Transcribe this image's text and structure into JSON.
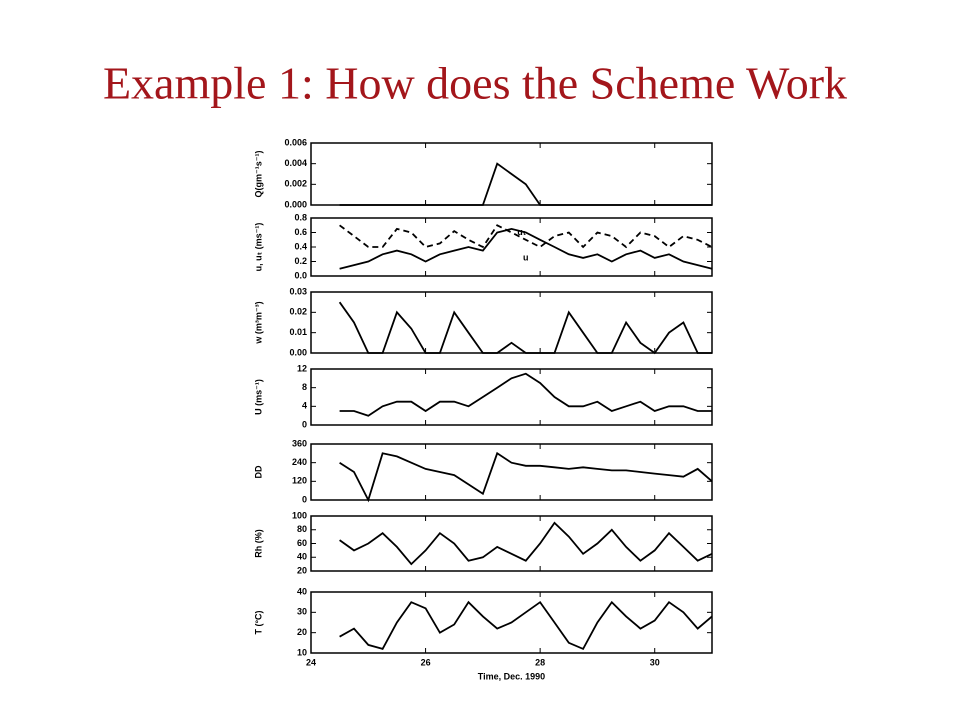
{
  "title": "Example 1: How does the Scheme Work",
  "chart_data": [
    {
      "type": "line",
      "ylabel": "Q(gm⁻¹s⁻¹)",
      "xlim": [
        24,
        31
      ],
      "ylim": [
        0,
        0.006
      ],
      "yticks": [
        {
          "value": 0,
          "label": "0.000"
        },
        {
          "value": 0.002,
          "label": "0.002"
        },
        {
          "value": 0.004,
          "label": "0.004"
        },
        {
          "value": 0.006,
          "label": "0.006"
        }
      ],
      "x": [
        24.5,
        24.75,
        25,
        25.25,
        25.5,
        25.75,
        26,
        26.25,
        26.5,
        26.75,
        27,
        27.25,
        27.5,
        27.75,
        28,
        28.25,
        28.5,
        28.75,
        29,
        29.25,
        29.5,
        29.75,
        30,
        30.25,
        30.5,
        30.75,
        31
      ],
      "values": [
        0,
        0,
        0,
        0,
        0,
        0,
        0,
        0,
        0,
        0,
        0,
        0.004,
        0.003,
        0.002,
        0,
        0,
        0,
        0,
        0,
        0,
        0,
        0,
        0,
        0,
        0,
        0,
        0
      ],
      "color": "#000000"
    },
    {
      "type": "line",
      "ylabel": "u, uₜ (ms⁻¹)",
      "xlim": [
        24,
        31
      ],
      "ylim": [
        0,
        0.8
      ],
      "yticks": [
        {
          "value": 0,
          "label": "0.0"
        },
        0.2,
        0.4,
        0.6,
        0.8
      ],
      "x": [
        24.5,
        24.75,
        25,
        25.25,
        25.5,
        25.75,
        26,
        26.25,
        26.5,
        26.75,
        27,
        27.25,
        27.5,
        27.75,
        28,
        28.25,
        28.5,
        28.75,
        29,
        29.25,
        29.5,
        29.75,
        30,
        30.25,
        30.5,
        30.75,
        31
      ],
      "series": [
        {
          "name": "uₜ",
          "color": "#000000",
          "dashed": true,
          "values": [
            0.7,
            0.55,
            0.4,
            0.4,
            0.65,
            0.6,
            0.4,
            0.45,
            0.62,
            0.5,
            0.4,
            0.7,
            0.6,
            0.5,
            0.4,
            0.55,
            0.6,
            0.4,
            0.6,
            0.55,
            0.4,
            0.6,
            0.55,
            0.4,
            0.55,
            0.5,
            0.4
          ]
        },
        {
          "name": "u",
          "color": "#000000",
          "dashed": false,
          "values": [
            0.1,
            0.15,
            0.2,
            0.3,
            0.35,
            0.3,
            0.2,
            0.3,
            0.35,
            0.4,
            0.35,
            0.6,
            0.65,
            0.6,
            0.5,
            0.4,
            0.3,
            0.25,
            0.3,
            0.2,
            0.3,
            0.35,
            0.25,
            0.3,
            0.2,
            0.15,
            0.1
          ]
        }
      ]
    },
    {
      "type": "line",
      "ylabel": "w (m³m⁻³)",
      "xlim": [
        24,
        31
      ],
      "ylim": [
        0,
        0.03
      ],
      "yticks": [
        {
          "value": 0,
          "label": "0.00"
        },
        0.01,
        0.02,
        0.03
      ],
      "x": [
        24.5,
        24.75,
        25,
        25.25,
        25.5,
        25.75,
        26,
        26.25,
        26.5,
        26.75,
        27,
        27.25,
        27.5,
        27.75,
        28,
        28.25,
        28.5,
        28.75,
        29,
        29.25,
        29.5,
        29.75,
        30,
        30.25,
        30.5,
        30.75,
        31
      ],
      "values": [
        0.025,
        0.015,
        0,
        0,
        0.02,
        0.012,
        0,
        0,
        0.02,
        0.01,
        0,
        0,
        0.005,
        0,
        0,
        0,
        0.02,
        0.01,
        0,
        0,
        0.015,
        0.005,
        0,
        0.01,
        0.015,
        0,
        0
      ],
      "color": "#000000"
    },
    {
      "type": "line",
      "ylabel": "U (ms⁻¹)",
      "xlim": [
        24,
        31
      ],
      "ylim": [
        0,
        12
      ],
      "yticks": [
        0,
        4,
        8,
        12
      ],
      "x": [
        24.5,
        24.75,
        25,
        25.25,
        25.5,
        25.75,
        26,
        26.25,
        26.5,
        26.75,
        27,
        27.25,
        27.5,
        27.75,
        28,
        28.25,
        28.5,
        28.75,
        29,
        29.25,
        29.5,
        29.75,
        30,
        30.25,
        30.5,
        30.75,
        31
      ],
      "values": [
        3,
        3,
        2,
        4,
        5,
        5,
        3,
        5,
        5,
        4,
        6,
        8,
        10,
        11,
        9,
        6,
        4,
        4,
        5,
        3,
        4,
        5,
        3,
        4,
        4,
        3,
        3
      ],
      "color": "#000000"
    },
    {
      "type": "line",
      "ylabel": "DD",
      "xlim": [
        24,
        31
      ],
      "ylim": [
        0,
        360
      ],
      "yticks": [
        0,
        120,
        240,
        360
      ],
      "x": [
        24.5,
        24.75,
        25,
        25.25,
        25.5,
        25.75,
        26,
        26.25,
        26.5,
        26.75,
        27,
        27.25,
        27.5,
        27.75,
        28,
        28.25,
        28.5,
        28.75,
        29,
        29.25,
        29.5,
        29.75,
        30,
        30.25,
        30.5,
        30.75,
        31
      ],
      "values": [
        240,
        180,
        0,
        300,
        280,
        240,
        200,
        180,
        160,
        100,
        40,
        300,
        240,
        220,
        220,
        210,
        200,
        210,
        200,
        190,
        190,
        180,
        170,
        160,
        150,
        200,
        120
      ],
      "color": "#000000"
    },
    {
      "type": "line",
      "ylabel": "Rh (%)",
      "xlim": [
        24,
        31
      ],
      "ylim": [
        20,
        100
      ],
      "yticks": [
        20,
        40,
        60,
        80,
        100
      ],
      "x": [
        24.5,
        24.75,
        25,
        25.25,
        25.5,
        25.75,
        26,
        26.25,
        26.5,
        26.75,
        27,
        27.25,
        27.5,
        27.75,
        28,
        28.25,
        28.5,
        28.75,
        29,
        29.25,
        29.5,
        29.75,
        30,
        30.25,
        30.5,
        30.75,
        31
      ],
      "values": [
        65,
        50,
        60,
        75,
        55,
        30,
        50,
        75,
        60,
        35,
        40,
        55,
        45,
        35,
        60,
        90,
        70,
        45,
        60,
        80,
        55,
        35,
        50,
        75,
        55,
        35,
        45
      ],
      "color": "#000000"
    },
    {
      "type": "line",
      "ylabel": "T (°C)",
      "xlabel": "Time, Dec. 1990",
      "xlim": [
        24,
        31
      ],
      "ylim": [
        10,
        40
      ],
      "yticks": [
        10,
        20,
        30,
        40
      ],
      "xticks": [
        24,
        26,
        28,
        30
      ],
      "x": [
        24.5,
        24.75,
        25,
        25.25,
        25.5,
        25.75,
        26,
        26.25,
        26.5,
        26.75,
        27,
        27.25,
        27.5,
        27.75,
        28,
        28.25,
        28.5,
        28.75,
        29,
        29.25,
        29.5,
        29.75,
        30,
        30.25,
        30.5,
        30.75,
        31
      ],
      "values": [
        18,
        22,
        14,
        12,
        25,
        35,
        32,
        20,
        24,
        35,
        28,
        22,
        25,
        30,
        35,
        25,
        15,
        12,
        25,
        35,
        28,
        22,
        26,
        35,
        30,
        22,
        28
      ],
      "color": "#000000"
    }
  ]
}
